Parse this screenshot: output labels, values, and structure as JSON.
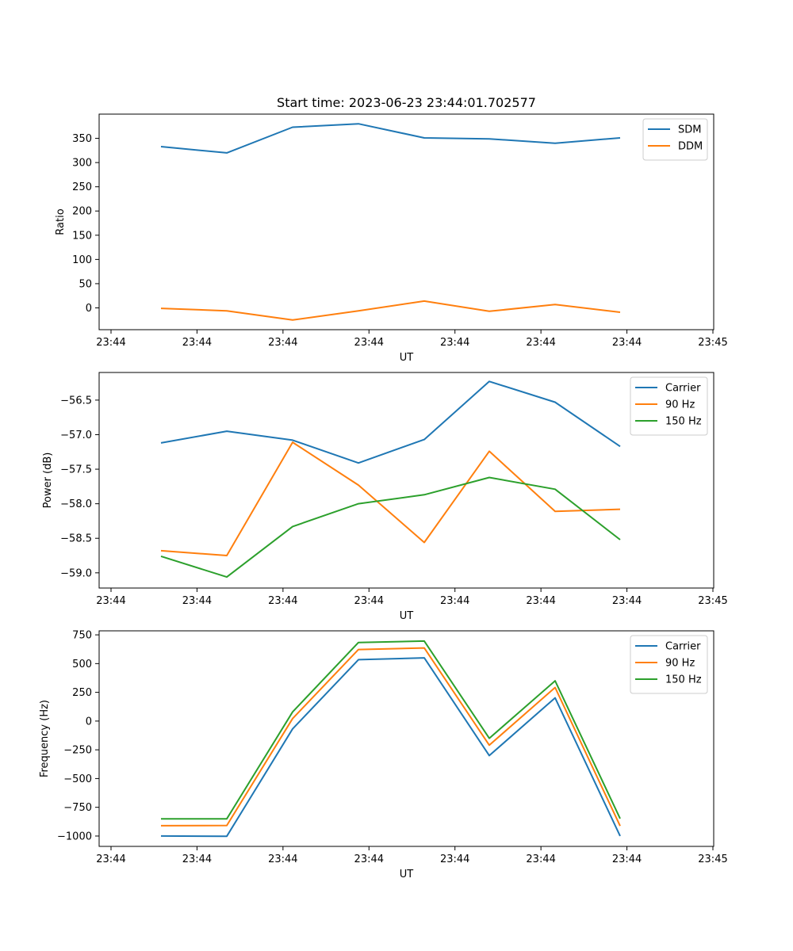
{
  "chart_data": [
    {
      "type": "line",
      "title": "Start time: 2023-06-23 23:44:01.702577",
      "xlabel": "UT",
      "ylabel": "Ratio",
      "x_tick_labels": [
        "23:44",
        "23:44",
        "23:44",
        "23:44",
        "23:44",
        "23:44",
        "23:44",
        "23:45"
      ],
      "y_ticks": [
        0,
        50,
        100,
        150,
        200,
        250,
        300,
        350
      ],
      "ylim": [
        -45,
        400
      ],
      "legend_position": "top-right",
      "series": [
        {
          "name": "SDM",
          "color": "#1f77b4",
          "values": [
            333,
            320,
            373,
            380,
            351,
            349,
            340,
            351
          ]
        },
        {
          "name": "DDM",
          "color": "#ff7f0e",
          "values": [
            -1,
            -6,
            -25,
            -6,
            14,
            -7,
            7,
            -9
          ]
        }
      ]
    },
    {
      "type": "line",
      "title": "",
      "xlabel": "UT",
      "ylabel": "Power (dB)",
      "x_tick_labels": [
        "23:44",
        "23:44",
        "23:44",
        "23:44",
        "23:44",
        "23:44",
        "23:44",
        "23:45"
      ],
      "y_ticks": [
        -59.0,
        -58.5,
        -58.0,
        -57.5,
        -57.0,
        -56.5
      ],
      "y_tick_labels": [
        "−59.0",
        "−58.5",
        "−58.0",
        "−57.5",
        "−57.0",
        "−56.5"
      ],
      "ylim": [
        -59.22,
        -56.1
      ],
      "legend_position": "top-right",
      "series": [
        {
          "name": "Carrier",
          "color": "#1f77b4",
          "values": [
            -57.12,
            -56.95,
            -57.08,
            -57.41,
            -57.07,
            -56.23,
            -56.53,
            -57.17
          ]
        },
        {
          "name": "90 Hz",
          "color": "#ff7f0e",
          "values": [
            -58.68,
            -58.75,
            -57.11,
            -57.73,
            -58.56,
            -57.24,
            -58.11,
            -58.08
          ]
        },
        {
          "name": "150 Hz",
          "color": "#2ca02c",
          "values": [
            -58.76,
            -59.06,
            -58.33,
            -58.0,
            -57.87,
            -57.62,
            -57.79,
            -58.52
          ]
        }
      ]
    },
    {
      "type": "line",
      "title": "",
      "xlabel": "UT",
      "ylabel": "Frequency (Hz)",
      "x_tick_labels": [
        "23:44",
        "23:44",
        "23:44",
        "23:44",
        "23:44",
        "23:44",
        "23:44",
        "23:45"
      ],
      "y_ticks": [
        -1000,
        -750,
        -500,
        -250,
        0,
        250,
        500,
        750
      ],
      "y_tick_labels": [
        "−1000",
        "−750",
        "−500",
        "−250",
        "0",
        "250",
        "500",
        "750"
      ],
      "ylim": [
        -1090,
        785
      ],
      "legend_position": "top-right",
      "series": [
        {
          "name": "Carrier",
          "color": "#1f77b4",
          "values": [
            -1000,
            -1002,
            -68,
            534,
            550,
            -300,
            202,
            -1000
          ]
        },
        {
          "name": "90 Hz",
          "color": "#ff7f0e",
          "values": [
            -910,
            -908,
            22,
            622,
            636,
            -210,
            292,
            -912
          ]
        },
        {
          "name": "150 Hz",
          "color": "#2ca02c",
          "values": [
            -850,
            -850,
            80,
            684,
            696,
            -150,
            350,
            -848
          ]
        }
      ]
    }
  ]
}
